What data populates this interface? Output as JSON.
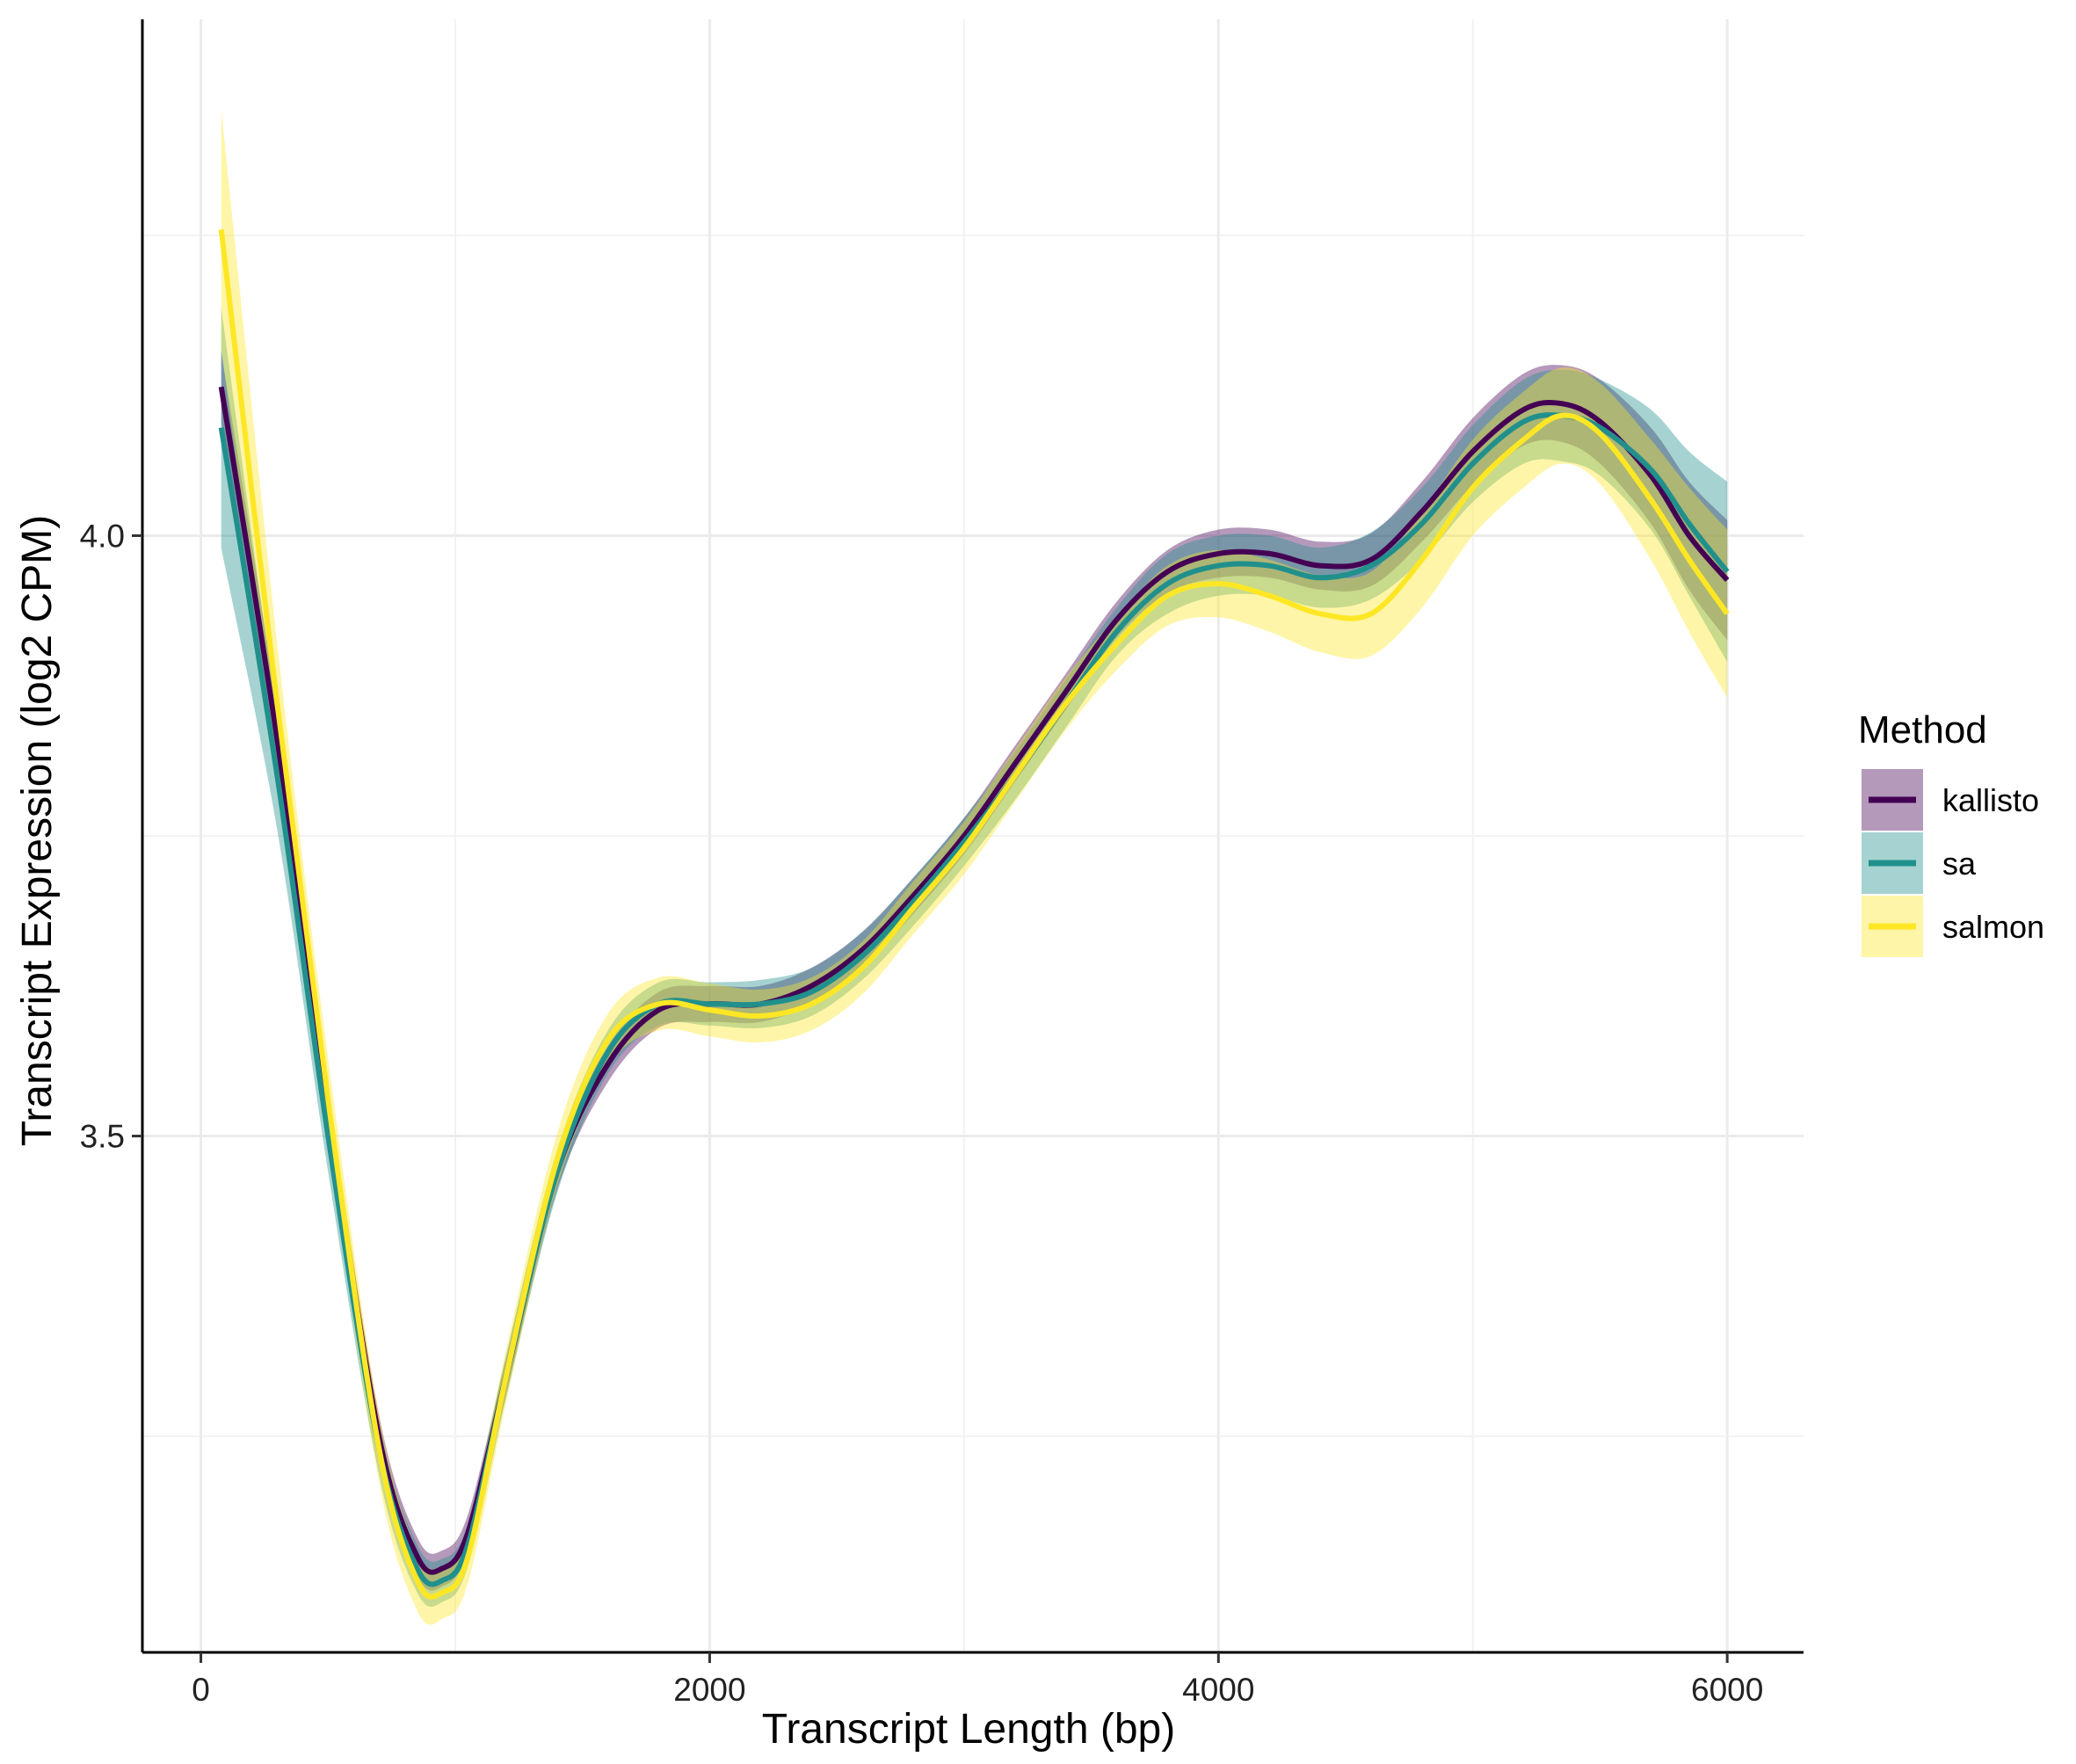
{
  "chart_data": {
    "type": "line",
    "title": "",
    "xlabel": "Transcript Length (bp)",
    "ylabel": "Transcript Expression (log2 CPM)",
    "xlim": [
      -230,
      6300
    ],
    "ylim": [
      3.07,
      4.43
    ],
    "x_ticks": [
      0,
      2000,
      4000,
      6000
    ],
    "x_tick_labels": [
      "0",
      "2000",
      "4000",
      "6000"
    ],
    "y_ticks": [
      3.5,
      4.0
    ],
    "y_tick_labels": [
      "3.5",
      "4.0"
    ],
    "grid": true,
    "legend": {
      "title": "Method",
      "position": "right"
    },
    "series": [
      {
        "name": "kallisto",
        "color": "#440154",
        "x": [
          80,
          300,
          500,
          700,
          850,
          950,
          1050,
          1200,
          1400,
          1600,
          1800,
          2000,
          2200,
          2400,
          2600,
          2800,
          3000,
          3200,
          3400,
          3600,
          3800,
          4000,
          4200,
          4400,
          4600,
          4800,
          5000,
          5200,
          5350,
          5500,
          5700,
          5850,
          6000
        ],
        "y": [
          4.124,
          3.83,
          3.52,
          3.25,
          3.15,
          3.14,
          3.17,
          3.3,
          3.47,
          3.56,
          3.605,
          3.61,
          3.61,
          3.625,
          3.655,
          3.7,
          3.75,
          3.81,
          3.87,
          3.93,
          3.97,
          3.985,
          3.985,
          3.975,
          3.98,
          4.02,
          4.07,
          4.105,
          4.11,
          4.095,
          4.05,
          4.0,
          3.963
        ],
        "band": [
          0.03,
          0.025,
          0.02,
          0.018,
          0.016,
          0.015,
          0.015,
          0.015,
          0.015,
          0.015,
          0.015,
          0.015,
          0.015,
          0.015,
          0.015,
          0.015,
          0.015,
          0.015,
          0.015,
          0.015,
          0.018,
          0.02,
          0.02,
          0.02,
          0.022,
          0.025,
          0.028,
          0.03,
          0.032,
          0.035,
          0.04,
          0.045,
          0.05
        ]
      },
      {
        "name": "sa",
        "color": "#21908C",
        "x": [
          80,
          300,
          500,
          700,
          850,
          950,
          1050,
          1200,
          1400,
          1600,
          1800,
          2000,
          2200,
          2400,
          2600,
          2800,
          3000,
          3200,
          3400,
          3600,
          3800,
          4000,
          4200,
          4400,
          4600,
          4800,
          5000,
          5200,
          5350,
          5500,
          5700,
          5850,
          6000
        ],
        "y": [
          4.09,
          3.8,
          3.5,
          3.24,
          3.14,
          3.13,
          3.16,
          3.3,
          3.47,
          3.57,
          3.61,
          3.61,
          3.61,
          3.62,
          3.65,
          3.695,
          3.745,
          3.8,
          3.86,
          3.92,
          3.96,
          3.975,
          3.975,
          3.965,
          3.975,
          4.01,
          4.06,
          4.095,
          4.1,
          4.09,
          4.055,
          4.01,
          3.97
        ],
        "band": [
          0.1,
          0.045,
          0.03,
          0.022,
          0.02,
          0.018,
          0.018,
          0.018,
          0.018,
          0.018,
          0.018,
          0.018,
          0.02,
          0.02,
          0.02,
          0.02,
          0.02,
          0.02,
          0.02,
          0.02,
          0.025,
          0.025,
          0.025,
          0.025,
          0.028,
          0.03,
          0.032,
          0.035,
          0.038,
          0.04,
          0.05,
          0.06,
          0.075
        ]
      },
      {
        "name": "salmon",
        "color": "#FDE725",
        "x": [
          80,
          300,
          500,
          700,
          850,
          950,
          1050,
          1200,
          1400,
          1600,
          1800,
          2000,
          2200,
          2400,
          2600,
          2800,
          3000,
          3200,
          3400,
          3600,
          3800,
          4000,
          4200,
          4400,
          4600,
          4800,
          5000,
          5200,
          5350,
          5500,
          5700,
          5850,
          6000
        ],
        "y": [
          4.255,
          3.86,
          3.53,
          3.24,
          3.13,
          3.12,
          3.15,
          3.3,
          3.48,
          3.58,
          3.61,
          3.605,
          3.6,
          3.61,
          3.64,
          3.69,
          3.74,
          3.8,
          3.86,
          3.91,
          3.95,
          3.96,
          3.95,
          3.935,
          3.935,
          3.98,
          4.04,
          4.08,
          4.1,
          4.085,
          4.03,
          3.98,
          3.935
        ],
        "band": [
          0.1,
          0.05,
          0.035,
          0.028,
          0.025,
          0.022,
          0.022,
          0.022,
          0.022,
          0.022,
          0.022,
          0.022,
          0.022,
          0.022,
          0.022,
          0.022,
          0.022,
          0.022,
          0.022,
          0.022,
          0.025,
          0.028,
          0.03,
          0.032,
          0.035,
          0.04,
          0.04,
          0.04,
          0.04,
          0.042,
          0.05,
          0.06,
          0.07
        ]
      }
    ]
  }
}
